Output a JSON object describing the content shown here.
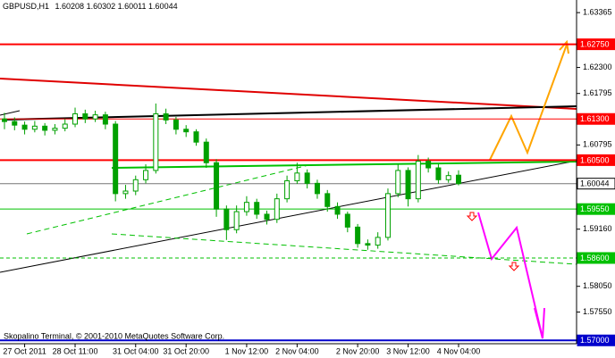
{
  "chart_data": {
    "type": "candlestick",
    "title": "GBPUSD,H1",
    "watermark": "Skopalino Terminal, © 2001-2010 MetaQuotes Software Corp.",
    "categories": [
      null,
      null,
      "27 Oct 2011",
      null,
      null,
      null,
      null,
      "28 Oct 11:00",
      null,
      null,
      null,
      null,
      null,
      "31 Oct 04:00",
      null,
      null,
      null,
      null,
      "31 Oct 20:00",
      null,
      null,
      null,
      null,
      null,
      "1 Nov 12:00",
      null,
      null,
      null,
      null,
      "2 Nov 04:00",
      null,
      null,
      null,
      null,
      null,
      "2 Nov 20:00",
      null,
      null,
      null,
      null,
      "3 Nov 12:00",
      null,
      null,
      null,
      null,
      "4 Nov 04:00"
    ],
    "ohlc": [
      [
        1.613,
        1.6142,
        1.611,
        1.6125
      ],
      [
        1.6125,
        1.6133,
        1.6108,
        1.6118
      ],
      [
        1.6118,
        1.6125,
        1.61,
        1.611
      ],
      [
        1.611,
        1.6126,
        1.6104,
        1.6116
      ],
      [
        1.6116,
        1.6122,
        1.6098,
        1.6108
      ],
      [
        1.6108,
        1.612,
        1.61,
        1.6112
      ],
      [
        1.6112,
        1.613,
        1.6106,
        1.612
      ],
      [
        1.612,
        1.6152,
        1.6114,
        1.614
      ],
      [
        1.614,
        1.6148,
        1.6122,
        1.613
      ],
      [
        1.613,
        1.6146,
        1.6124,
        1.6138
      ],
      [
        1.6138,
        1.6144,
        1.611,
        1.612
      ],
      [
        1.612,
        1.6126,
        1.597,
        1.5985
      ],
      [
        1.5985,
        1.6002,
        1.5975,
        1.599
      ],
      [
        1.599,
        1.602,
        1.5982,
        1.6012
      ],
      [
        1.6012,
        1.6042,
        1.6005,
        1.603
      ],
      [
        1.603,
        1.616,
        1.6024,
        1.614
      ],
      [
        1.614,
        1.615,
        1.612,
        1.6128
      ],
      [
        1.6128,
        1.6134,
        1.61,
        1.611
      ],
      [
        1.611,
        1.6118,
        1.6095,
        1.6105
      ],
      [
        1.6105,
        1.611,
        1.6078,
        1.6085
      ],
      [
        1.6085,
        1.6092,
        1.6035,
        1.6045
      ],
      [
        1.6045,
        1.6052,
        1.594,
        1.5955
      ],
      [
        1.5955,
        1.5962,
        1.5895,
        1.5915
      ],
      [
        1.5915,
        1.5962,
        1.5908,
        1.595
      ],
      [
        1.595,
        1.598,
        1.5942,
        1.5968
      ],
      [
        1.5968,
        1.5975,
        1.5936,
        1.5945
      ],
      [
        1.5945,
        1.5952,
        1.5925,
        1.5935
      ],
      [
        1.5935,
        1.5985,
        1.5928,
        1.5975
      ],
      [
        1.5975,
        1.602,
        1.5968,
        1.601
      ],
      [
        1.601,
        1.6045,
        1.6004,
        1.6025
      ],
      [
        1.6025,
        1.6032,
        1.5995,
        1.6005
      ],
      [
        1.6005,
        1.6012,
        1.5975,
        1.5985
      ],
      [
        1.5985,
        1.5992,
        1.595,
        1.596
      ],
      [
        1.596,
        1.5968,
        1.5936,
        1.5945
      ],
      [
        1.5945,
        1.595,
        1.591,
        1.592
      ],
      [
        1.592,
        1.5926,
        1.588,
        1.5888
      ],
      [
        1.5888,
        1.5896,
        1.5876,
        1.5885
      ],
      [
        1.5885,
        1.591,
        1.5878,
        1.59
      ],
      [
        1.59,
        1.5995,
        1.5894,
        1.5985
      ],
      [
        1.5985,
        1.6042,
        1.5978,
        1.603
      ],
      [
        1.603,
        1.6036,
        1.596,
        1.5975
      ],
      [
        1.5975,
        1.606,
        1.5968,
        1.6048
      ],
      [
        1.6048,
        1.6055,
        1.6026,
        1.6035
      ],
      [
        1.6035,
        1.6042,
        1.6004,
        1.6012
      ],
      [
        1.6012,
        1.6028,
        1.6006,
        1.602
      ],
      [
        1.60208,
        1.60302,
        1.60011,
        1.60044
      ]
    ],
    "color": "#00a000",
    "ylim": [
      1.5697,
      1.6361
    ],
    "yticks": [
      1.63365,
      {
        "value": 1.623,
        "label": "1.62300"
      },
      1.61795,
      1.60795,
      {
        "value": 1.5916,
        "label": "1.59160"
      },
      {
        "value": 1.5805,
        "label": "1.58050"
      },
      {
        "value": 1.5755,
        "label": "1.57550"
      }
    ],
    "levels": [
      {
        "value": 1.6275,
        "label": "1.62750",
        "color": "#ff0000"
      },
      {
        "value": 1.613,
        "label": "1.61300",
        "color": "#ff0000"
      },
      {
        "value": 1.605,
        "label": "1.60500",
        "color": "#ff0000"
      },
      {
        "value": 1.60044,
        "label": "1.60044",
        "color": "#ffffff"
      },
      {
        "value": 1.5955,
        "label": "1.59550",
        "color": "#00c000"
      },
      {
        "value": 1.586,
        "label": "1.58600",
        "color": "#00c000"
      },
      {
        "value": 1.57,
        "label": "1.57000",
        "color": "#0000cc"
      }
    ]
  }
}
